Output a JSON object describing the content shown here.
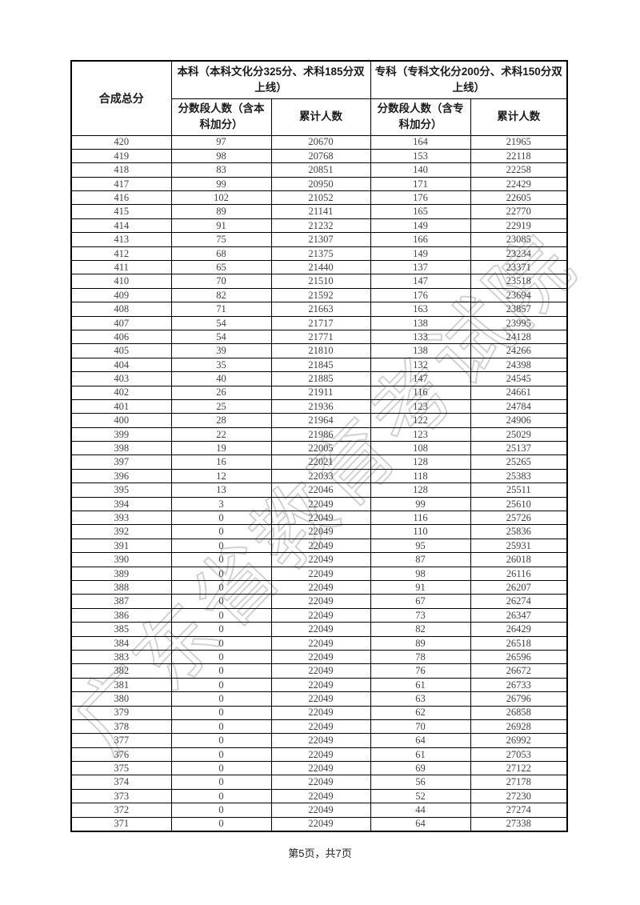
{
  "watermark": "广东省教育考试院",
  "footer": {
    "text": "第5页，共7页"
  },
  "table": {
    "header": {
      "score_col": "合成总分",
      "benke_group": "本科（本科文化分325分、术科185分双上线）",
      "zhuanke_group": "专科（专科文化分200分、术科150分双上线）",
      "benke_segment": "分数段人数（含本科加分）",
      "benke_cumulative": "累计人数",
      "zhuanke_segment": "分数段人数（含专科加分）",
      "zhuanke_cumulative": "累计人数"
    },
    "rows": [
      [
        420,
        97,
        20670,
        164,
        21965
      ],
      [
        419,
        98,
        20768,
        153,
        22118
      ],
      [
        418,
        83,
        20851,
        140,
        22258
      ],
      [
        417,
        99,
        20950,
        171,
        22429
      ],
      [
        416,
        102,
        21052,
        176,
        22605
      ],
      [
        415,
        89,
        21141,
        165,
        22770
      ],
      [
        414,
        91,
        21232,
        149,
        22919
      ],
      [
        413,
        75,
        21307,
        166,
        23085
      ],
      [
        412,
        68,
        21375,
        149,
        23234
      ],
      [
        411,
        65,
        21440,
        137,
        23371
      ],
      [
        410,
        70,
        21510,
        147,
        23518
      ],
      [
        409,
        82,
        21592,
        176,
        23694
      ],
      [
        408,
        71,
        21663,
        163,
        23857
      ],
      [
        407,
        54,
        21717,
        138,
        23995
      ],
      [
        406,
        54,
        21771,
        133,
        24128
      ],
      [
        405,
        39,
        21810,
        138,
        24266
      ],
      [
        404,
        35,
        21845,
        132,
        24398
      ],
      [
        403,
        40,
        21885,
        147,
        24545
      ],
      [
        402,
        26,
        21911,
        116,
        24661
      ],
      [
        401,
        25,
        21936,
        123,
        24784
      ],
      [
        400,
        28,
        21964,
        122,
        24906
      ],
      [
        399,
        22,
        21986,
        123,
        25029
      ],
      [
        398,
        19,
        22005,
        108,
        25137
      ],
      [
        397,
        16,
        22021,
        128,
        25265
      ],
      [
        396,
        12,
        22033,
        118,
        25383
      ],
      [
        395,
        13,
        22046,
        128,
        25511
      ],
      [
        394,
        3,
        22049,
        99,
        25610
      ],
      [
        393,
        0,
        22049,
        116,
        25726
      ],
      [
        392,
        0,
        22049,
        110,
        25836
      ],
      [
        391,
        0,
        22049,
        95,
        25931
      ],
      [
        390,
        0,
        22049,
        87,
        26018
      ],
      [
        389,
        0,
        22049,
        98,
        26116
      ],
      [
        388,
        0,
        22049,
        91,
        26207
      ],
      [
        387,
        0,
        22049,
        67,
        26274
      ],
      [
        386,
        0,
        22049,
        73,
        26347
      ],
      [
        385,
        0,
        22049,
        82,
        26429
      ],
      [
        384,
        0,
        22049,
        89,
        26518
      ],
      [
        383,
        0,
        22049,
        78,
        26596
      ],
      [
        382,
        0,
        22049,
        76,
        26672
      ],
      [
        381,
        0,
        22049,
        61,
        26733
      ],
      [
        380,
        0,
        22049,
        63,
        26796
      ],
      [
        379,
        0,
        22049,
        62,
        26858
      ],
      [
        378,
        0,
        22049,
        70,
        26928
      ],
      [
        377,
        0,
        22049,
        64,
        26992
      ],
      [
        376,
        0,
        22049,
        61,
        27053
      ],
      [
        375,
        0,
        22049,
        69,
        27122
      ],
      [
        374,
        0,
        22049,
        56,
        27178
      ],
      [
        373,
        0,
        22049,
        52,
        27230
      ],
      [
        372,
        0,
        22049,
        44,
        27274
      ],
      [
        371,
        0,
        22049,
        64,
        27338
      ]
    ]
  }
}
